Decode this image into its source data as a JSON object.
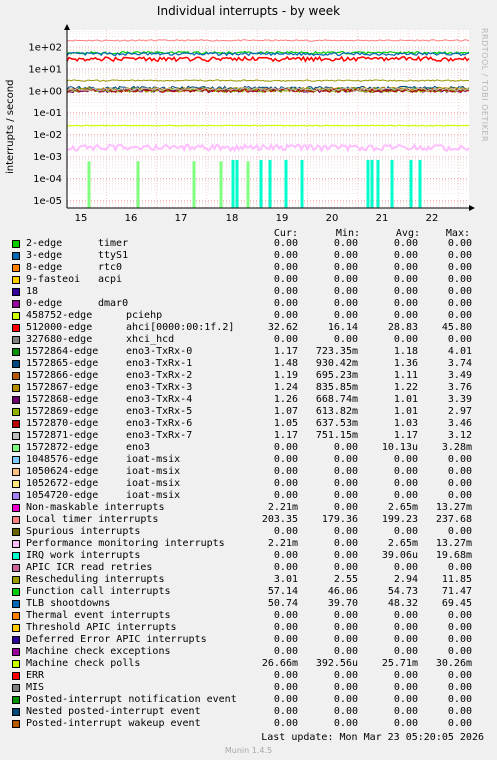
{
  "title": "Individual interrupts - by week",
  "watermark": "RRDTOOL / TOBI OETIKER",
  "chart_data": {
    "type": "line",
    "ylabel": "interrupts / second",
    "y_scale": "log",
    "ylim": [
      7e-06,
      300
    ],
    "y_ticks": [
      "1e+02",
      "1e+01",
      "1e+00",
      "1e-01",
      "1e-02",
      "1e-03",
      "1e-04",
      "1e-05"
    ],
    "x_ticks": [
      "15",
      "16",
      "17",
      "18",
      "19",
      "20",
      "21",
      "22"
    ],
    "grid": true,
    "legend_position": "bottom",
    "columns": [
      "Cur:",
      "Min:",
      "Avg:",
      "Max:"
    ],
    "series": [
      {
        "name": "2-edge",
        "device": "timer",
        "color": "#00cc00",
        "cur": "0.00",
        "min": "0.00",
        "avg": "0.00",
        "max": "0.00"
      },
      {
        "name": "3-edge",
        "device": "ttyS1",
        "color": "#0066b3",
        "cur": "0.00",
        "min": "0.00",
        "avg": "0.00",
        "max": "0.00"
      },
      {
        "name": "8-edge",
        "device": "rtc0",
        "color": "#ff8000",
        "cur": "0.00",
        "min": "0.00",
        "avg": "0.00",
        "max": "0.00"
      },
      {
        "name": "9-fasteoi",
        "device": "acpi",
        "color": "#ffcc00",
        "cur": "0.00",
        "min": "0.00",
        "avg": "0.00",
        "max": "0.00"
      },
      {
        "name": "18",
        "device": "",
        "color": "#330099",
        "cur": "0.00",
        "min": "0.00",
        "avg": "0.00",
        "max": "0.00"
      },
      {
        "name": "0-edge",
        "device": "dmar0",
        "color": "#990099",
        "cur": "0.00",
        "min": "0.00",
        "avg": "0.00",
        "max": "0.00"
      },
      {
        "name": "458752-edge",
        "device": "pciehp",
        "color": "#ccff00",
        "cur": "0.00",
        "min": "0.00",
        "avg": "0.00",
        "max": "0.00"
      },
      {
        "name": "512000-edge",
        "device": "ahci[0000:00:1f.2]",
        "color": "#ff0000",
        "cur": "32.62",
        "min": "16.14",
        "avg": "28.83",
        "max": "45.80"
      },
      {
        "name": "327680-edge",
        "device": "xhci_hcd",
        "color": "#808080",
        "cur": "0.00",
        "min": "0.00",
        "avg": "0.00",
        "max": "0.00"
      },
      {
        "name": "1572864-edge",
        "device": "eno3-TxRx-0",
        "color": "#008f00",
        "cur": "1.17",
        "min": "723.35m",
        "avg": "1.18",
        "max": "4.01"
      },
      {
        "name": "1572865-edge",
        "device": "eno3-TxRx-1",
        "color": "#00487d",
        "cur": "1.48",
        "min": "930.42m",
        "avg": "1.36",
        "max": "3.74"
      },
      {
        "name": "1572866-edge",
        "device": "eno3-TxRx-2",
        "color": "#b35a00",
        "cur": "1.19",
        "min": "695.23m",
        "avg": "1.11",
        "max": "3.49"
      },
      {
        "name": "1572867-edge",
        "device": "eno3-TxRx-3",
        "color": "#b38f00",
        "cur": "1.24",
        "min": "835.85m",
        "avg": "1.22",
        "max": "3.76"
      },
      {
        "name": "1572868-edge",
        "device": "eno3-TxRx-4",
        "color": "#6b006b",
        "cur": "1.26",
        "min": "668.74m",
        "avg": "1.01",
        "max": "3.39"
      },
      {
        "name": "1572869-edge",
        "device": "eno3-TxRx-5",
        "color": "#8fb300",
        "cur": "1.07",
        "min": "613.82m",
        "avg": "1.01",
        "max": "2.97"
      },
      {
        "name": "1572870-edge",
        "device": "eno3-TxRx-6",
        "color": "#b30000",
        "cur": "1.05",
        "min": "637.53m",
        "avg": "1.03",
        "max": "3.46"
      },
      {
        "name": "1572871-edge",
        "device": "eno3-TxRx-7",
        "color": "#bebebe",
        "cur": "1.17",
        "min": "751.15m",
        "avg": "1.17",
        "max": "3.12"
      },
      {
        "name": "1572872-edge",
        "device": "eno3",
        "color": "#80ff80",
        "cur": "0.00",
        "min": "0.00",
        "avg": "10.13u",
        "max": "3.28m"
      },
      {
        "name": "1048576-edge",
        "device": "ioat-msix",
        "color": "#80c9ff",
        "cur": "0.00",
        "min": "0.00",
        "avg": "0.00",
        "max": "0.00"
      },
      {
        "name": "1050624-edge",
        "device": "ioat-msix",
        "color": "#ffc080",
        "cur": "0.00",
        "min": "0.00",
        "avg": "0.00",
        "max": "0.00"
      },
      {
        "name": "1052672-edge",
        "device": "ioat-msix",
        "color": "#ffe680",
        "cur": "0.00",
        "min": "0.00",
        "avg": "0.00",
        "max": "0.00"
      },
      {
        "name": "1054720-edge",
        "device": "ioat-msix",
        "color": "#aa80ff",
        "cur": "0.00",
        "min": "0.00",
        "avg": "0.00",
        "max": "0.00"
      },
      {
        "name": "Non-maskable interrupts",
        "device": "",
        "color": "#ee00cc",
        "cur": "2.21m",
        "min": "0.00",
        "avg": "2.65m",
        "max": "13.27m"
      },
      {
        "name": "Local timer interrupts",
        "device": "",
        "color": "#ff8080",
        "cur": "203.35",
        "min": "179.36",
        "avg": "199.23",
        "max": "237.68"
      },
      {
        "name": "Spurious interrupts",
        "device": "",
        "color": "#666600",
        "cur": "0.00",
        "min": "0.00",
        "avg": "0.00",
        "max": "0.00"
      },
      {
        "name": "Performance monitoring interrupts",
        "device": "",
        "color": "#ffbfff",
        "cur": "2.21m",
        "min": "0.00",
        "avg": "2.65m",
        "max": "13.27m"
      },
      {
        "name": "IRQ work interrupts",
        "device": "",
        "color": "#00ffcc",
        "cur": "0.00",
        "min": "0.00",
        "avg": "39.06u",
        "max": "19.68m"
      },
      {
        "name": "APIC ICR read retries",
        "device": "",
        "color": "#cc6699",
        "cur": "0.00",
        "min": "0.00",
        "avg": "0.00",
        "max": "0.00"
      },
      {
        "name": "Rescheduling interrupts",
        "device": "",
        "color": "#999900",
        "cur": "3.01",
        "min": "2.55",
        "avg": "2.94",
        "max": "11.85"
      },
      {
        "name": "Function call interrupts",
        "device": "",
        "color": "#00cc00",
        "cur": "57.14",
        "min": "46.06",
        "avg": "54.73",
        "max": "71.47"
      },
      {
        "name": "TLB shootdowns",
        "device": "",
        "color": "#0066b3",
        "cur": "50.74",
        "min": "39.70",
        "avg": "48.32",
        "max": "69.45"
      },
      {
        "name": "Thermal event interrupts",
        "device": "",
        "color": "#ff8000",
        "cur": "0.00",
        "min": "0.00",
        "avg": "0.00",
        "max": "0.00"
      },
      {
        "name": "Threshold APIC interrupts",
        "device": "",
        "color": "#ffcc00",
        "cur": "0.00",
        "min": "0.00",
        "avg": "0.00",
        "max": "0.00"
      },
      {
        "name": "Deferred Error APIC interrupts",
        "device": "",
        "color": "#330099",
        "cur": "0.00",
        "min": "0.00",
        "avg": "0.00",
        "max": "0.00"
      },
      {
        "name": "Machine check exceptions",
        "device": "",
        "color": "#990099",
        "cur": "0.00",
        "min": "0.00",
        "avg": "0.00",
        "max": "0.00"
      },
      {
        "name": "Machine check polls",
        "device": "",
        "color": "#ccff00",
        "cur": "26.66m",
        "min": "392.56u",
        "avg": "25.71m",
        "max": "30.26m"
      },
      {
        "name": "ERR",
        "device": "",
        "color": "#ff0000",
        "cur": "0.00",
        "min": "0.00",
        "avg": "0.00",
        "max": "0.00"
      },
      {
        "name": "MIS",
        "device": "",
        "color": "#808080",
        "cur": "0.00",
        "min": "0.00",
        "avg": "0.00",
        "max": "0.00"
      },
      {
        "name": "Posted-interrupt notification event",
        "device": "",
        "color": "#008f00",
        "cur": "0.00",
        "min": "0.00",
        "avg": "0.00",
        "max": "0.00"
      },
      {
        "name": "Nested posted-interrupt event",
        "device": "",
        "color": "#00487d",
        "cur": "0.00",
        "min": "0.00",
        "avg": "0.00",
        "max": "0.00"
      },
      {
        "name": "Posted-interrupt wakeup event",
        "device": "",
        "color": "#b35a00",
        "cur": "0.00",
        "min": "0.00",
        "avg": "0.00",
        "max": "0.00"
      }
    ]
  },
  "footer": {
    "last_update_label": "Last update:",
    "last_update_value": "Mon Mar 23 05:20:05 2026",
    "munin": "Munin 1.4.5"
  }
}
